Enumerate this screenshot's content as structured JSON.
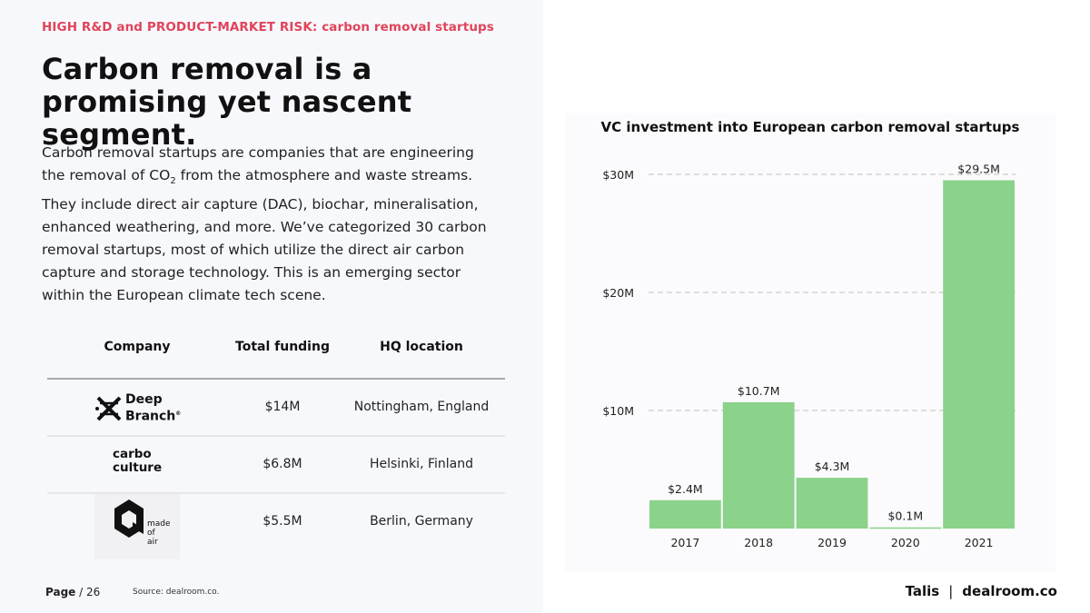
{
  "header": {
    "eyebrow": "HIGH R&D and PRODUCT-MARKET RISK: carbon removal startups",
    "headline": "Carbon removal is a promising yet nascent segment.",
    "body_pre": "Carbon removal startups are companies that are engineering the removal of CO",
    "body_sub": "2",
    "body_post": " from the atmosphere and waste streams. They include direct air capture (DAC), biochar, mineralisation, enhanced weathering, and more. We’ve categorized 30 carbon removal startups, most of which utilize the direct air carbon capture and storage technology. This is an emerging sector within the European climate tech scene."
  },
  "table": {
    "headers": [
      "Company",
      "Total funding",
      "HQ location"
    ],
    "rows": [
      {
        "logo_lines": [
          "Deep",
          "Branch"
        ],
        "logo_mark": "®",
        "funding": "$14M",
        "hq": "Nottingham, England"
      },
      {
        "logo_lines": [
          "carbo",
          "culture"
        ],
        "funding": "$6.8M",
        "hq": "Helsinki, Finland"
      },
      {
        "logo_lines": [
          "made",
          "of",
          "air"
        ],
        "funding": "$5.5M",
        "hq": "Berlin, Germany"
      }
    ]
  },
  "footer": {
    "page_label": "Page",
    "page_number": "/ 26",
    "source": "Source: dealroom.co.",
    "brand_left": "Talis",
    "brand_sep": "|",
    "brand_right": "dealroom.co"
  },
  "colors": {
    "accent": "#e0445a",
    "bar": "#8bd28a",
    "grid": "#dddddd"
  },
  "chart_data": {
    "type": "bar",
    "title": "VC investment into European carbon removal startups",
    "categories": [
      "2017",
      "2018",
      "2019",
      "2020",
      "2021"
    ],
    "values": [
      2.4,
      10.7,
      4.3,
      0.1,
      29.5
    ],
    "data_labels": [
      "$2.4M",
      "$10.7M",
      "$4.3M",
      "$0.1M",
      "$29.5M"
    ],
    "y_ticks": [
      10,
      20,
      30
    ],
    "y_tick_labels": [
      "$10M",
      "$20M",
      "$30M"
    ],
    "ylim": [
      0,
      30
    ],
    "grid": true,
    "xlabel": "",
    "ylabel": ""
  }
}
